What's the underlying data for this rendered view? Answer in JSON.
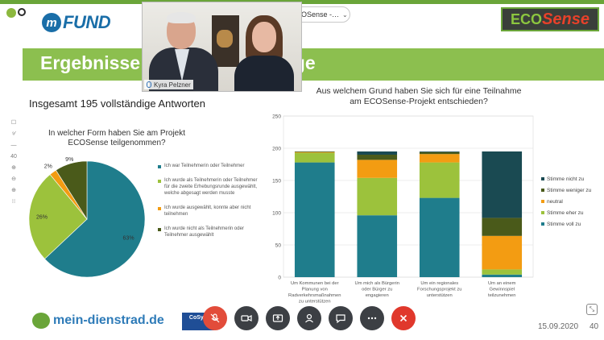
{
  "meeting": {
    "tab_label": "OSense -…",
    "participant_name": "Kyra Pelzner"
  },
  "slide": {
    "banner_left": "Ergebnisse",
    "banner_right": "age",
    "total_responses": "Insgesamt 195 vollständige Antworten",
    "date": "15.09.2020",
    "page_number": "40",
    "logos": {
      "mfund_letter": "m",
      "mfund_text": "FUND",
      "ecosense_eco": "ECO",
      "ecosense_sense": "Sense",
      "dienstrad": "mein-dienstrad.de",
      "cosyn": "CoSyn"
    },
    "side_tools": [
      "☐",
      "⁹⁄",
      "—",
      "40",
      "⊕",
      "⊖",
      "⊕",
      "⁝⁝"
    ]
  },
  "chart_data": [
    {
      "type": "pie",
      "title": "In welcher Form haben Sie am Projekt ECOSense teilgenommen?",
      "slices": [
        {
          "label": "Ich war Teilnehmerin oder Teilnehmer",
          "value": 63,
          "color": "#1f7d8c",
          "display": "63%"
        },
        {
          "label": "Ich wurde als Teilnehmerin oder Teilnehmer für die zweite Erhebungsrunde ausgewählt, welche abgesagt werden musste",
          "value": 26,
          "color": "#9cc23c",
          "display": "26%"
        },
        {
          "label": "Ich wurde ausgewählt, konnte aber nicht teilnehmen",
          "value": 2,
          "color": "#f39c12",
          "display": "2%"
        },
        {
          "label": "Ich wurde nicht als Teilnehmerin oder Teilnehmer ausgewählt",
          "value": 9,
          "color": "#4a5a1a",
          "display": "9%"
        }
      ]
    },
    {
      "type": "bar",
      "stacked": true,
      "title": "Aus welchem Grund haben Sie sich für eine Teilnahme am ECOSense-Projekt entschieden?",
      "ylim": [
        0,
        250
      ],
      "yticks": [
        0,
        50,
        100,
        150,
        200,
        250
      ],
      "grid": true,
      "legend_placement": "right",
      "categories": [
        "Um Kommunen bei der Planung von Radverkehrsmaßnahmen zu unterstützen",
        "Um mich als Bürgerin oder Bürger zu engagieren",
        "Um ein regionales Forschungsprojekt zu unterstützen",
        "Um an einem Gewinnspiel teilzunehmen"
      ],
      "series": [
        {
          "name": "Stimme voll zu",
          "color": "#1f7d8c",
          "values": [
            178,
            96,
            123,
            4
          ]
        },
        {
          "name": "Stimme eher zu",
          "color": "#9cc23c",
          "values": [
            15,
            58,
            55,
            8
          ]
        },
        {
          "name": "neutral",
          "color": "#f39c12",
          "values": [
            1,
            28,
            13,
            52
          ]
        },
        {
          "name": "Stimme weniger zu",
          "color": "#4a5a1a",
          "values": [
            1,
            8,
            3,
            28
          ]
        },
        {
          "name": "Stimme nicht zu",
          "color": "#1a4a52",
          "values": [
            0,
            5,
            1,
            103
          ]
        }
      ]
    }
  ]
}
